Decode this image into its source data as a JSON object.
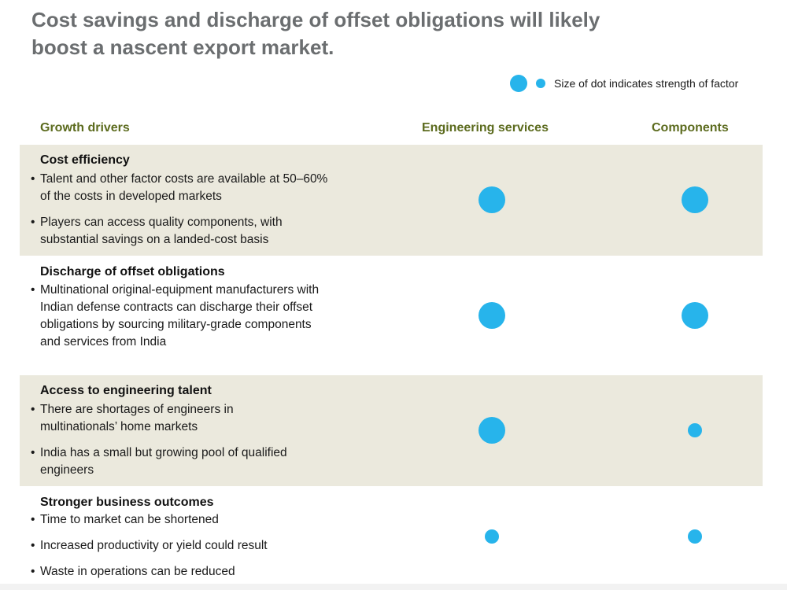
{
  "title": {
    "line1": "Cost savings and discharge of offset obligations will likely",
    "line2": "boost a nascent export market."
  },
  "legend": {
    "text": "Size of dot indicates strength of factor",
    "color": "#27b4eb"
  },
  "columns": {
    "drivers": "Growth drivers",
    "engineering": "Engineering services",
    "components": "Components"
  },
  "rows": [
    {
      "title": "Cost efficiency",
      "bullets": [
        "Talent and other factor costs are available at 50–60% of the costs in developed markets",
        "Players can access quality components, with substantial savings on a landed-cost basis"
      ],
      "engineering_strength": "large",
      "components_strength": "large"
    },
    {
      "title": "Discharge of offset obligations",
      "bullets": [
        "Multinational original-equipment manufacturers with Indian defense contracts can discharge their offset obligations by sourcing military-grade components and services from India"
      ],
      "engineering_strength": "large",
      "components_strength": "large"
    },
    {
      "title": "Access to engineering talent",
      "bullets": [
        "There are shortages of engineers in multinationals’ home markets",
        "India has a small but growing pool of qualified engineers"
      ],
      "engineering_strength": "large",
      "components_strength": "small"
    },
    {
      "title": "Stronger business outcomes",
      "bullets": [
        "Time to market can be shortened",
        "Increased productivity or yield could result",
        "Waste in operations can be reduced"
      ],
      "engineering_strength": "small",
      "components_strength": "small"
    }
  ]
}
